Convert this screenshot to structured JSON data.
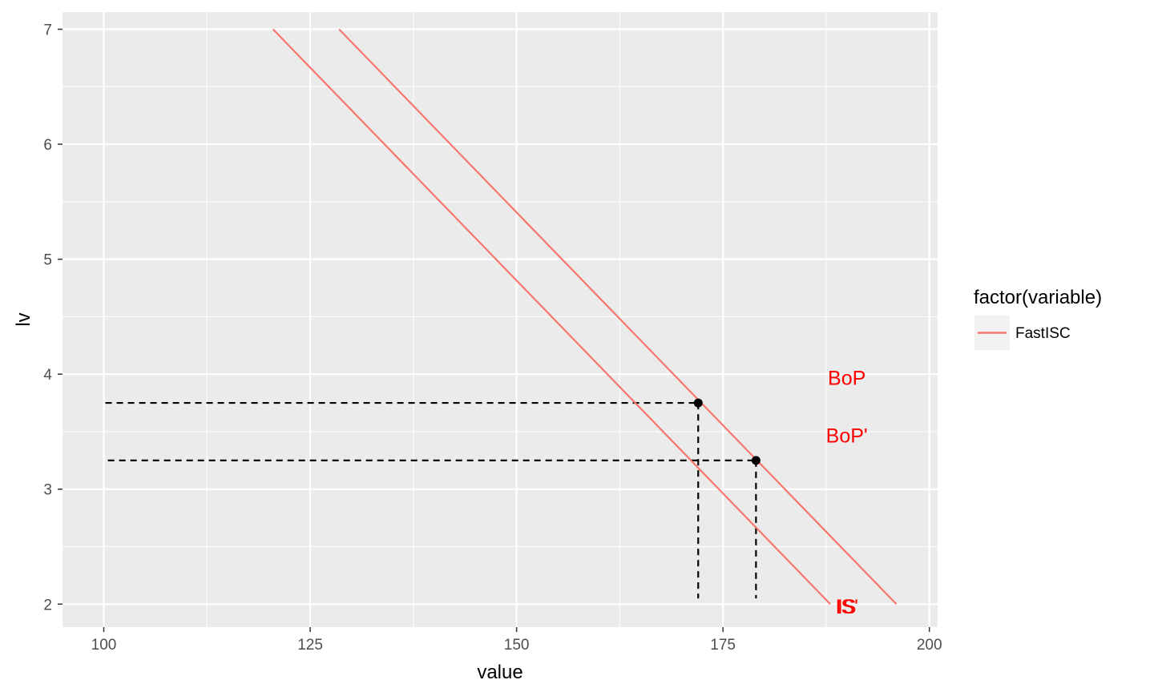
{
  "chart_data": {
    "type": "line",
    "xlabel": "value",
    "ylabel": "lv",
    "xlim": [
      95,
      201
    ],
    "ylim": [
      1.8,
      7.15
    ],
    "x_ticks": [
      100,
      125,
      150,
      175,
      200
    ],
    "y_ticks": [
      2,
      3,
      4,
      5,
      6,
      7
    ],
    "grid": true,
    "legend": {
      "title": "factor(variable)",
      "position": "right",
      "entries": [
        {
          "label": "FastISC",
          "color": "#F8766D"
        }
      ]
    },
    "series": [
      {
        "name": "FastISC",
        "color": "#F8766D",
        "points": [
          [
            120.5,
            7
          ],
          [
            188,
            2
          ]
        ]
      },
      {
        "name": "FastISC",
        "color": "#F8766D",
        "points": [
          [
            128.5,
            7
          ],
          [
            196,
            2
          ]
        ]
      }
    ],
    "points": [
      {
        "x": 172,
        "y": 3.75
      },
      {
        "x": 179,
        "y": 3.25
      }
    ],
    "reference_lines": [
      {
        "points": [
          [
            100.2,
            3.75
          ],
          [
            172,
            3.75
          ]
        ]
      },
      {
        "points": [
          [
            172,
            3.75
          ],
          [
            172,
            2.05
          ]
        ]
      },
      {
        "points": [
          [
            100.5,
            3.25
          ],
          [
            179,
            3.25
          ]
        ]
      },
      {
        "points": [
          [
            179,
            3.25
          ],
          [
            179,
            2.05
          ]
        ]
      }
    ],
    "annotations": [
      {
        "text": "BoP",
        "x": 190,
        "y": 3.97,
        "color": "#FF0000"
      },
      {
        "text": "BoP'",
        "x": 190,
        "y": 3.47,
        "color": "#FF0000"
      },
      {
        "text": "IS",
        "x": 190,
        "y": 1.98,
        "color": "#FF0000"
      },
      {
        "text": "IS'",
        "x": 190,
        "y": 1.98,
        "color": "#FF0000"
      }
    ]
  }
}
